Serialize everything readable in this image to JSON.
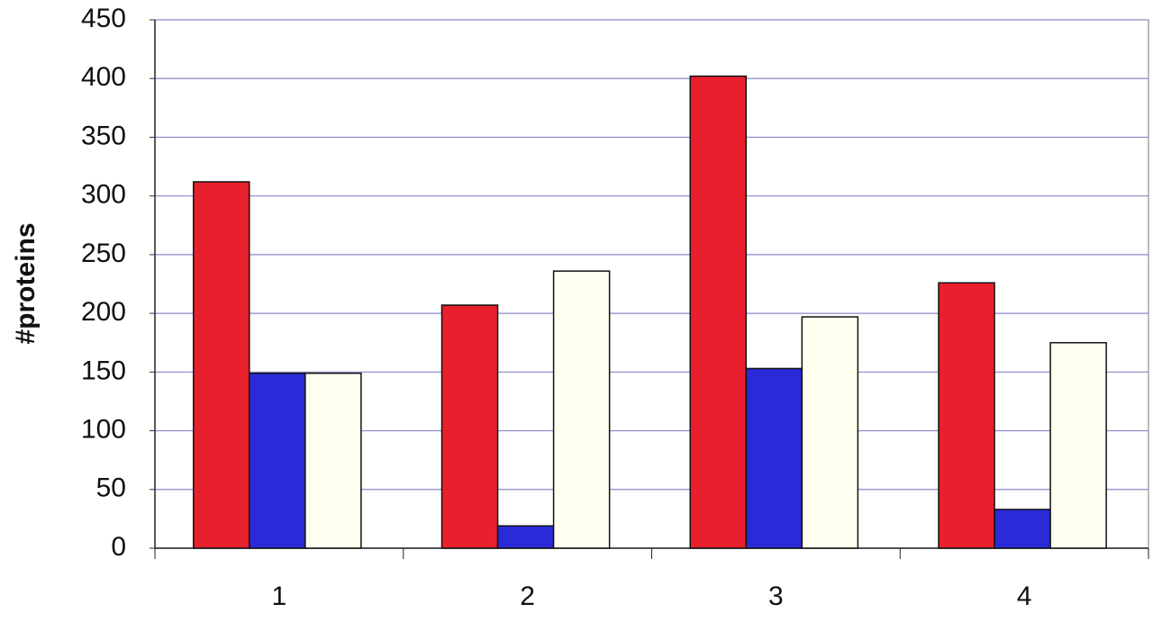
{
  "chart_data": {
    "type": "bar",
    "y_label": "#proteins",
    "categories": [
      "1",
      "2",
      "3",
      "4"
    ],
    "series": [
      {
        "color": "#e8202e",
        "values": [
          312,
          207,
          402,
          226
        ]
      },
      {
        "color": "#2a2ad8",
        "values": [
          149,
          19,
          153,
          33
        ]
      },
      {
        "color": "#fffff0",
        "values": [
          149,
          236,
          197,
          175
        ]
      }
    ],
    "ylim": [
      0,
      450
    ],
    "yticks": [
      0,
      50,
      100,
      150,
      200,
      250,
      300,
      350,
      400,
      450
    ],
    "grid": true
  }
}
